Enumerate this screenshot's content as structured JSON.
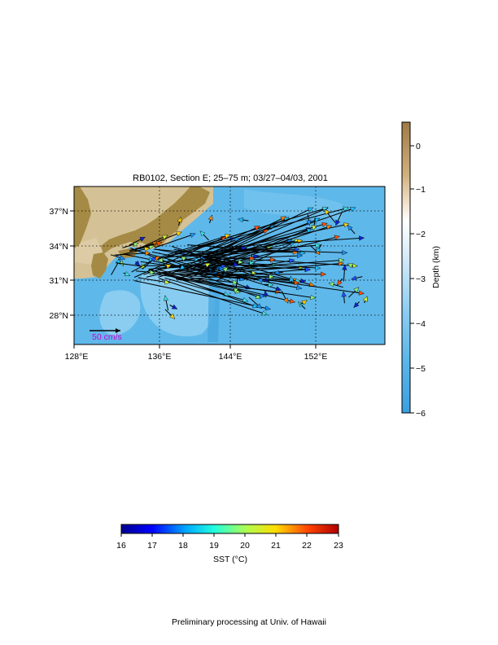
{
  "title": "RB0102, Section E; 25–75 m; 03/27–04/03, 2001",
  "map": {
    "lon_range": [
      128,
      163
    ],
    "lat_range": [
      25.5,
      39
    ],
    "lon_ticks": [
      "128°E",
      "136°E",
      "144°E",
      "152°E"
    ],
    "lat_ticks": [
      "37°N",
      "34°N",
      "31°N",
      "28°N"
    ],
    "scale_label": "50 cm/s",
    "colors": {
      "ocean": "#5fb8ea",
      "land": "#a58a45",
      "shelf": "#d4c296",
      "scale_label": "#d000d0"
    }
  },
  "depth_colorbar": {
    "label": "Depth (km)",
    "ticks": [
      "0",
      "−1",
      "−2",
      "−3",
      "−4",
      "−5",
      "−6"
    ]
  },
  "sst_colorbar": {
    "label": "SST (°C)",
    "ticks": [
      "16",
      "17",
      "18",
      "19",
      "20",
      "21",
      "22",
      "23"
    ]
  },
  "footer": "Preliminary processing at Univ. of Hawaii"
}
